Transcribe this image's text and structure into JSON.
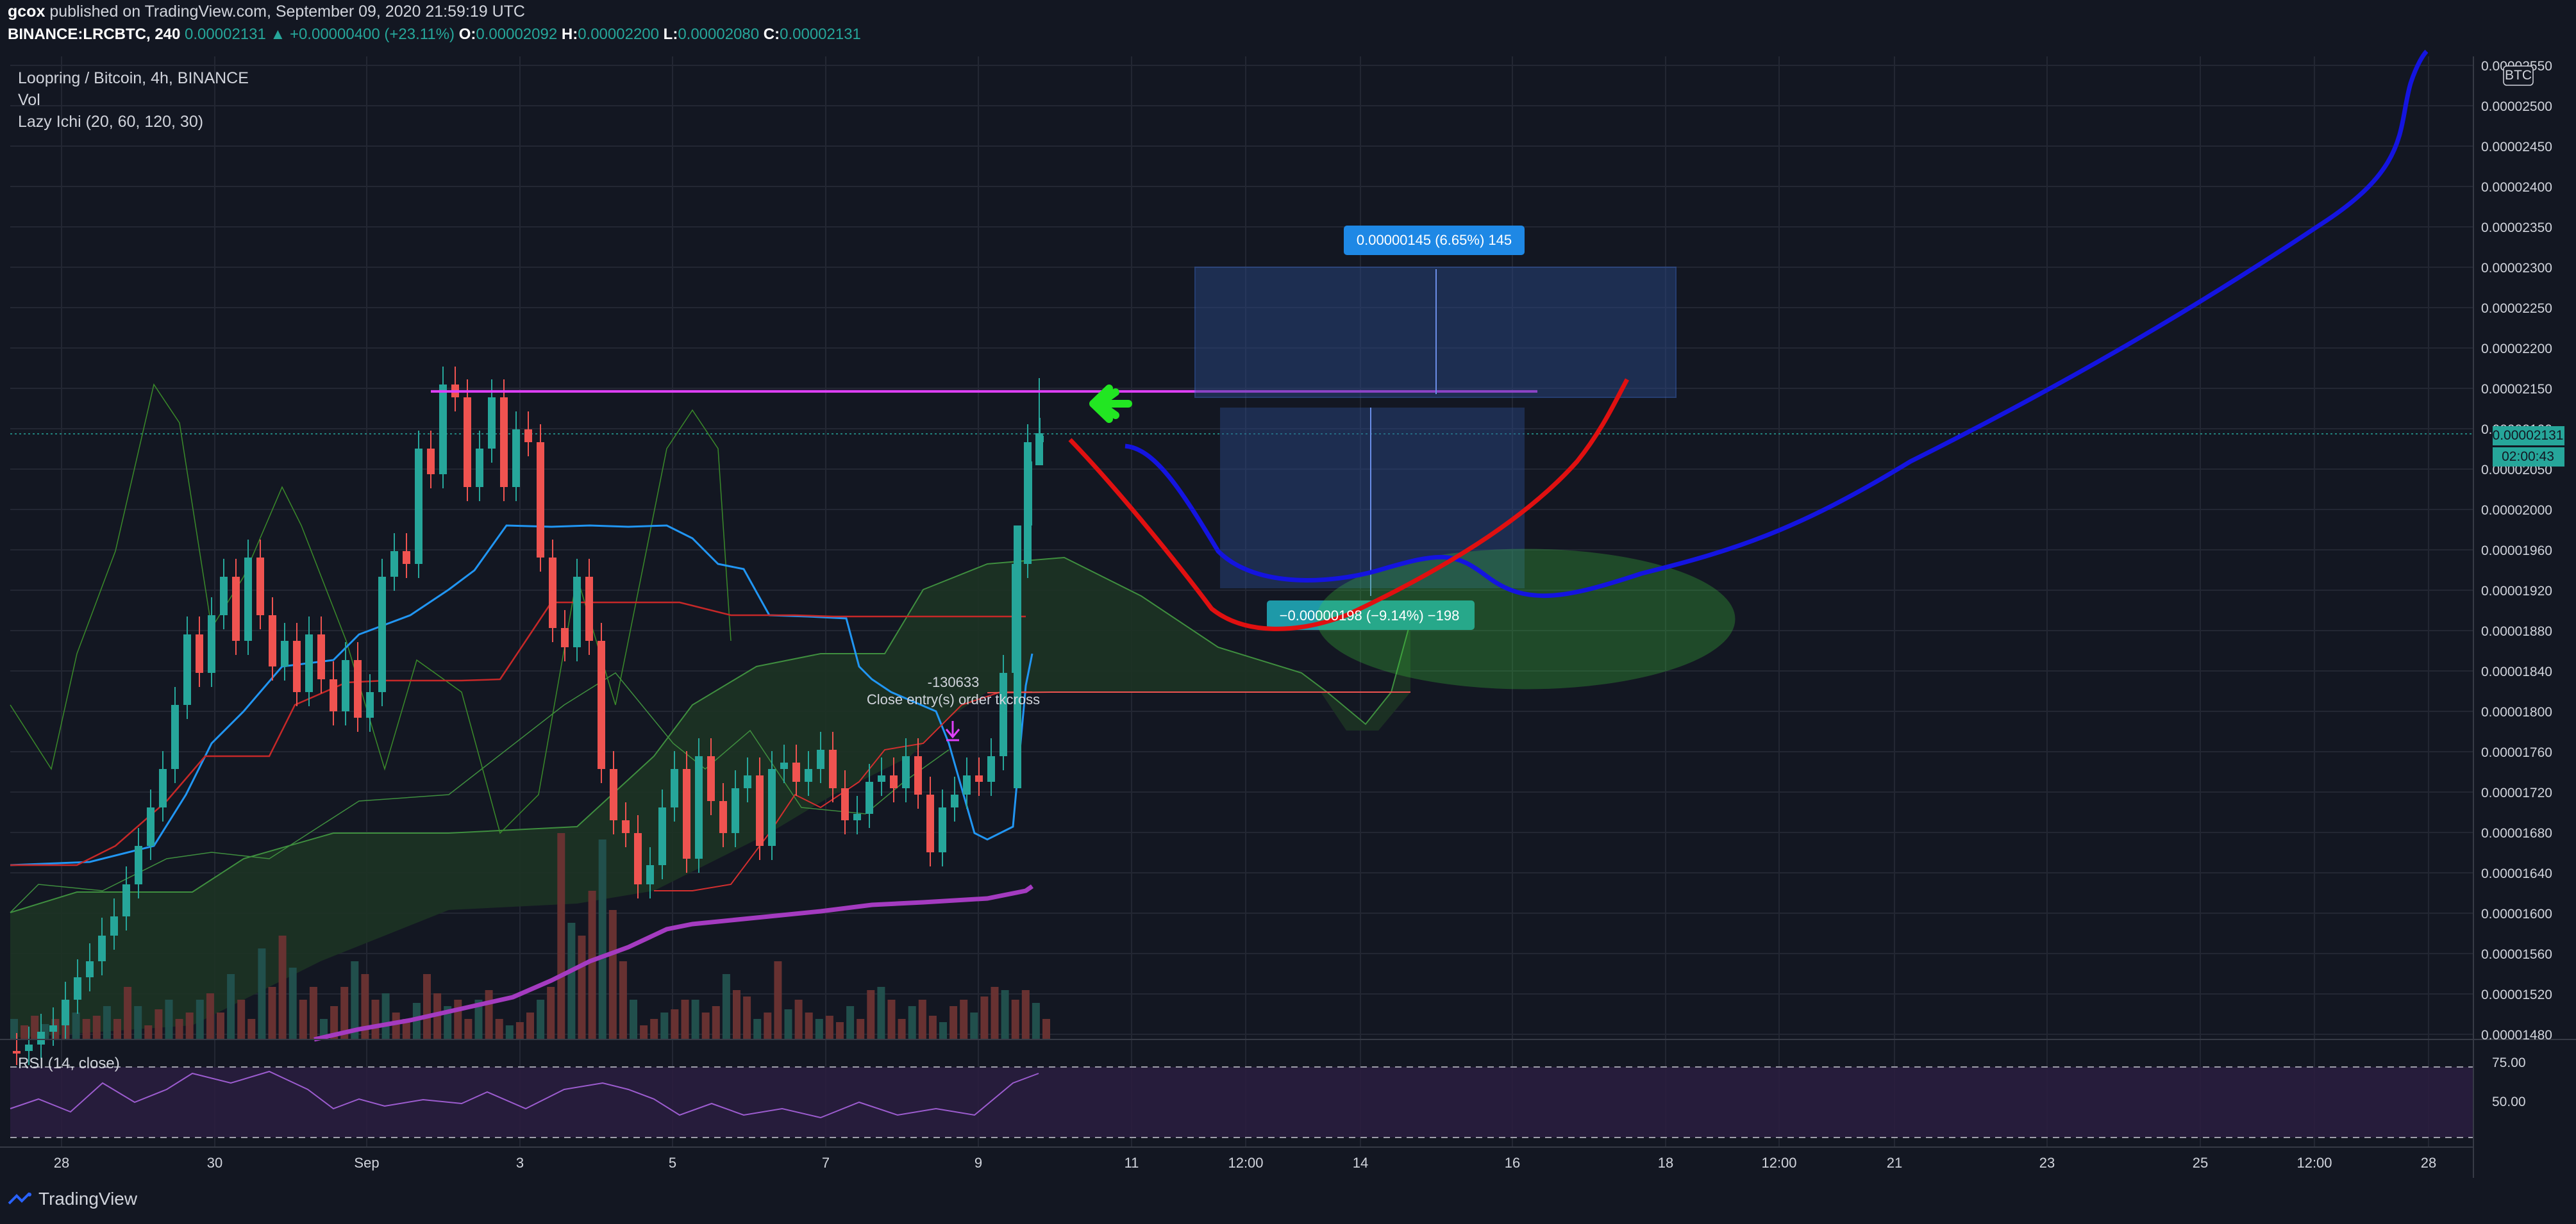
{
  "header": {
    "user": "gcox",
    "published": "published on TradingView.com, September 09, 2020 21:59:19 UTC",
    "symbol": "BINANCE:LRCBTC, 240",
    "last": "0.00002131",
    "change": "+0.00000400 (+23.11%)",
    "o_label": "O:",
    "o_value": "0.00002092",
    "h_label": "H:",
    "h_value": "0.00002200",
    "l_label": "L:",
    "l_value": "0.00002080",
    "c_label": "C:",
    "c_value": "0.00002131"
  },
  "legend": {
    "title": "Loopring / Bitcoin, 4h, BINANCE",
    "vol": "Vol",
    "ichi": "Lazy Ichi (20, 60, 120, 30)"
  },
  "annotations": {
    "target_label": "0.00000145 (6.65%) 145",
    "stop_label": "−0.00000198 (−9.14%) −198",
    "order_value": "-130633",
    "order_text": "Close entry(s) order tkcross",
    "currency_badge": "BTC",
    "price_tag": "0.00002131",
    "countdown": "02:00:43"
  },
  "rsi": {
    "label": "RSI (14, close)",
    "levels": [
      "75.00",
      "50.00"
    ]
  },
  "brand": "TradingView",
  "colors": {
    "background": "#131722",
    "up": "#26a69a",
    "down": "#ef5350",
    "magenta_line": "#e040fb",
    "projection_blue": "#1414e0",
    "projection_red": "#e01010",
    "ellipse": "#3ecf3e",
    "arrow": "#22e622",
    "target_box": "#2962ff",
    "tenkan": "#2196f3",
    "kijun": "#c62828",
    "sma": "#a43bc0"
  },
  "chart_data": {
    "type": "candlestick",
    "title": "Loopring / Bitcoin, 4h, BINANCE",
    "x_tick_labels": [
      "28",
      "30",
      "Sep",
      "3",
      "5",
      "7",
      "9",
      "11",
      "12:00",
      "14",
      "16",
      "18",
      "12:00",
      "21",
      "23",
      "25",
      "12:00",
      "28"
    ],
    "y_tick_labels": [
      "0.00002550",
      "0.00002500",
      "0.00002450",
      "0.00002400",
      "0.00002350",
      "0.00002300",
      "0.00002250",
      "0.00002200",
      "0.00002150",
      "0.00002100",
      "0.00002050",
      "0.00002000",
      "0.00001960",
      "0.00001920",
      "0.00001880",
      "0.00001840",
      "0.00001800",
      "0.00001760",
      "0.00001720",
      "0.00001680",
      "0.00001640",
      "0.00001600",
      "0.00001560",
      "0.00001520",
      "0.00001480"
    ],
    "y_axis_range": [
      1.46e-05,
      2.56e-05
    ],
    "resistance_level": 2.19e-05,
    "current_price": 2.131e-05,
    "target_zone": [
      2.19e-05,
      2.32e-05
    ],
    "stop_zone": [
      1.96e-05,
      2.16e-05
    ]
  }
}
